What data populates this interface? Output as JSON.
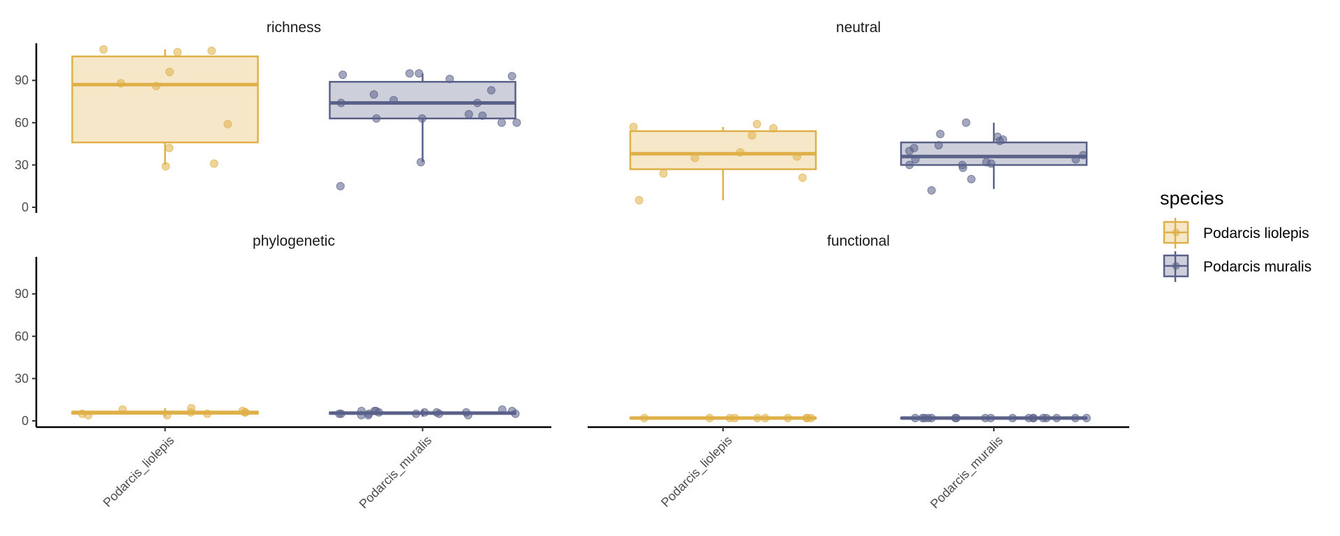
{
  "chart_data": {
    "type": "boxplot",
    "ylim": [
      0,
      120
    ],
    "yticks": [
      0,
      30,
      60,
      90
    ],
    "categories": [
      "Podarcis_liolepis",
      "Podarcis_muralis"
    ],
    "grid": false,
    "legend": {
      "title": "species",
      "position": "right",
      "entries": [
        {
          "label": "Podarcis liolepis",
          "color": "#E0B048"
        },
        {
          "label": "Podarcis muralis",
          "color": "#5A6189"
        }
      ]
    },
    "panels": [
      {
        "title": "richness",
        "boxes": [
          {
            "category": "Podarcis_liolepis",
            "min": 30,
            "q1": 46,
            "median": 87,
            "q3": 107,
            "max": 112,
            "points": [
              112,
              111,
              110,
              86,
              88,
              59,
              31,
              29,
              96,
              42
            ]
          },
          {
            "category": "Podarcis_muralis",
            "min": 32,
            "q1": 63,
            "median": 74,
            "q3": 89,
            "max": 95,
            "points": [
              93,
              80,
              63,
              74,
              83,
              91,
              74,
              63,
              65,
              66,
              94,
              95,
              60,
              60,
              95,
              76,
              32,
              15
            ]
          }
        ]
      },
      {
        "title": "neutral",
        "boxes": [
          {
            "category": "Podarcis_liolepis",
            "min": 5,
            "q1": 27,
            "median": 38,
            "q3": 54,
            "max": 57,
            "points": [
              39,
              57,
              35,
              36,
              24,
              21,
              51,
              56,
              5,
              59
            ]
          },
          {
            "category": "Podarcis_muralis",
            "min": 13,
            "q1": 30,
            "median": 36,
            "q3": 46,
            "max": 60,
            "points": [
              48,
              50,
              60,
              30,
              30,
              42,
              37,
              40,
              44,
              47,
              31,
              28,
              34,
              20,
              34,
              32,
              52,
              12
            ]
          }
        ]
      },
      {
        "title": "phylogenetic",
        "boxes": [
          {
            "category": "Podarcis_liolepis",
            "min": 3,
            "q1": 5,
            "median": 6,
            "q3": 6.5,
            "max": 9,
            "points": [
              6,
              4,
              6,
              5,
              4,
              8,
              7,
              9,
              6,
              5
            ]
          },
          {
            "category": "Podarcis_muralis",
            "min": 3,
            "q1": 5,
            "median": 5.5,
            "q3": 6,
            "max": 8,
            "points": [
              7,
              6,
              5,
              7,
              8,
              4,
              5,
              5,
              6,
              7,
              6,
              5,
              4,
              7,
              5,
              6,
              4,
              5
            ]
          }
        ]
      },
      {
        "title": "functional",
        "boxes": [
          {
            "category": "Podarcis_liolepis",
            "min": 1.5,
            "q1": 1.8,
            "median": 2,
            "q3": 2.2,
            "max": 2.5,
            "points": [
              2,
              2,
              2,
              2,
              2,
              2,
              2,
              2,
              2,
              2
            ]
          },
          {
            "category": "Podarcis_muralis",
            "min": 1.5,
            "q1": 1.8,
            "median": 2,
            "q3": 2.2,
            "max": 2.5,
            "points": [
              2,
              2,
              2,
              2,
              2,
              2,
              2,
              2,
              2,
              2,
              2,
              2,
              2,
              2,
              2,
              2,
              2,
              2
            ]
          }
        ]
      }
    ]
  }
}
